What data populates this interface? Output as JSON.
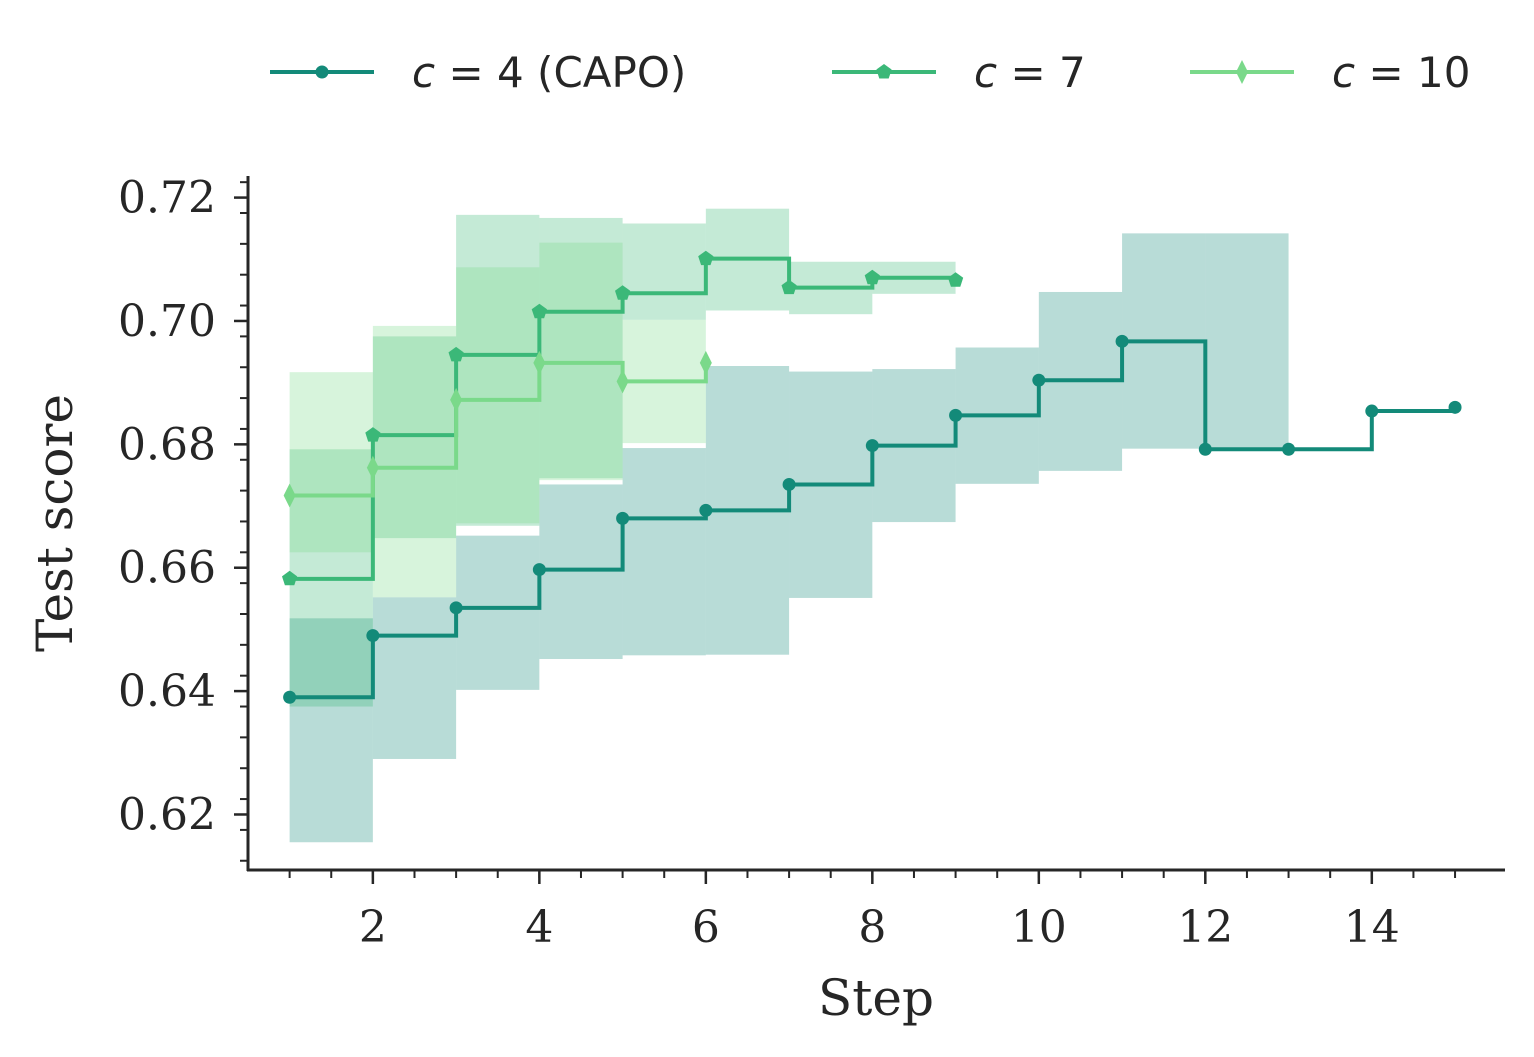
{
  "chart_data": {
    "type": "line",
    "step": "post",
    "xlabel": "Step",
    "ylabel": "Test score",
    "xlim": [
      0.5,
      15.6
    ],
    "ylim": [
      0.611,
      0.7235
    ],
    "xticks": [
      2,
      4,
      6,
      8,
      10,
      12,
      14
    ],
    "xtick_labels": [
      "2",
      "4",
      "6",
      "8",
      "10",
      "12",
      "14"
    ],
    "yticks": [
      0.62,
      0.64,
      0.66,
      0.68,
      0.7,
      0.72
    ],
    "ytick_labels": [
      "0.62",
      "0.64",
      "0.66",
      "0.68",
      "0.70",
      "0.72"
    ],
    "minor_ticks": true,
    "grid": false,
    "legend_position": "top",
    "series": [
      {
        "name_prefix": "c",
        "name_suffix": " = 4 (CAPO)",
        "color": "#138a79",
        "marker": "circle",
        "x": [
          1,
          2,
          3,
          4,
          5,
          6,
          7,
          8,
          9,
          10,
          11,
          12,
          13,
          14,
          15
        ],
        "values": [
          0.639,
          0.649,
          0.6535,
          0.6597,
          0.668,
          0.6693,
          0.6735,
          0.6798,
          0.6847,
          0.6904,
          0.6967,
          0.6792,
          0.6792,
          0.6854,
          0.686
        ],
        "band_low": [
          0.6155,
          0.629,
          0.6402,
          0.6452,
          0.6458,
          0.6459,
          0.6551,
          0.6674,
          0.6736,
          0.6757,
          0.6793,
          0.6793,
          null,
          null,
          null
        ],
        "band_high": [
          0.6518,
          0.6552,
          0.6652,
          0.6735,
          0.6794,
          0.6927,
          0.6918,
          0.6922,
          0.6957,
          0.7047,
          0.7142,
          0.7142,
          null,
          null,
          null
        ]
      },
      {
        "name_prefix": "c",
        "name_suffix": " = 7",
        "color": "#3bb878",
        "marker": "pentagon",
        "x": [
          1,
          2,
          3,
          4,
          5,
          6,
          7,
          8,
          9
        ],
        "values": [
          0.6582,
          0.6815,
          0.6945,
          0.7015,
          0.7045,
          0.7101,
          0.7054,
          0.707,
          0.7066
        ],
        "band_low": [
          0.6375,
          0.6648,
          0.6668,
          0.6745,
          0.7002,
          0.7017,
          0.7011,
          0.7044,
          0.7044
        ],
        "band_high": [
          0.6792,
          0.6975,
          0.7172,
          0.7167,
          0.7158,
          0.7182,
          0.7096,
          0.7096,
          0.7096
        ]
      },
      {
        "name_prefix": "c",
        "name_suffix": " = 10",
        "color": "#7ad98a",
        "marker": "thin-diamond",
        "x": [
          1,
          2,
          3,
          4,
          5,
          6
        ],
        "values": [
          0.6717,
          0.6762,
          0.6872,
          0.6932,
          0.6902,
          0.6932
        ],
        "band_low": [
          0.6625,
          0.6552,
          0.6672,
          0.6742,
          0.6802,
          0.6802
        ],
        "band_high": [
          0.6917,
          0.6992,
          0.7087,
          0.7127,
          0.7002,
          0.7002
        ]
      }
    ]
  }
}
